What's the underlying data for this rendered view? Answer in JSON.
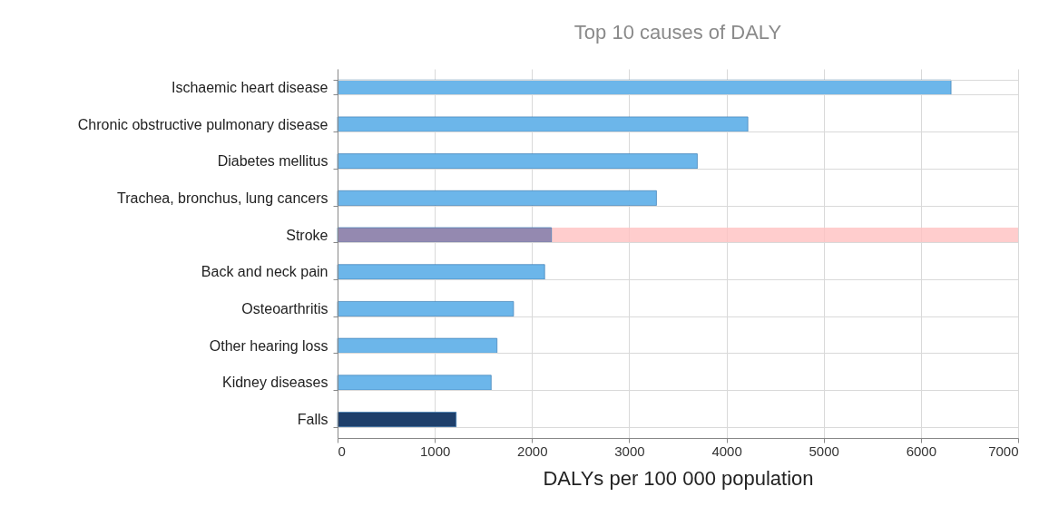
{
  "chart_data": {
    "type": "bar",
    "orientation": "horizontal",
    "title": "Top 10 causes of DALY",
    "xlabel": "DALYs per 100 000 population",
    "categories": [
      "Ischaemic heart disease",
      "Chronic obstructive pulmonary disease",
      "Diabetes mellitus",
      "Trachea, bronchus, lung cancers",
      "Stroke",
      "Back and neck pain",
      "Osteoarthritis",
      "Other hearing loss",
      "Kidney diseases",
      "Falls"
    ],
    "values": [
      6310,
      4220,
      3700,
      3280,
      2200,
      2130,
      1810,
      1640,
      1580,
      1220
    ],
    "colors": [
      "#6cb6ea",
      "#6cb6ea",
      "#6cb6ea",
      "#6cb6ea",
      "#9489b0",
      "#6cb6ea",
      "#6cb6ea",
      "#6cb6ea",
      "#6cb6ea",
      "#1e3f6b"
    ],
    "xlim": [
      0,
      7000
    ],
    "xticks": [
      0,
      1000,
      2000,
      3000,
      4000,
      5000,
      6000,
      7000
    ],
    "bands": [
      {
        "axis": "y",
        "from": "Stroke",
        "to": "Stroke",
        "color": "#ffc0c0"
      }
    ],
    "grid": true
  }
}
